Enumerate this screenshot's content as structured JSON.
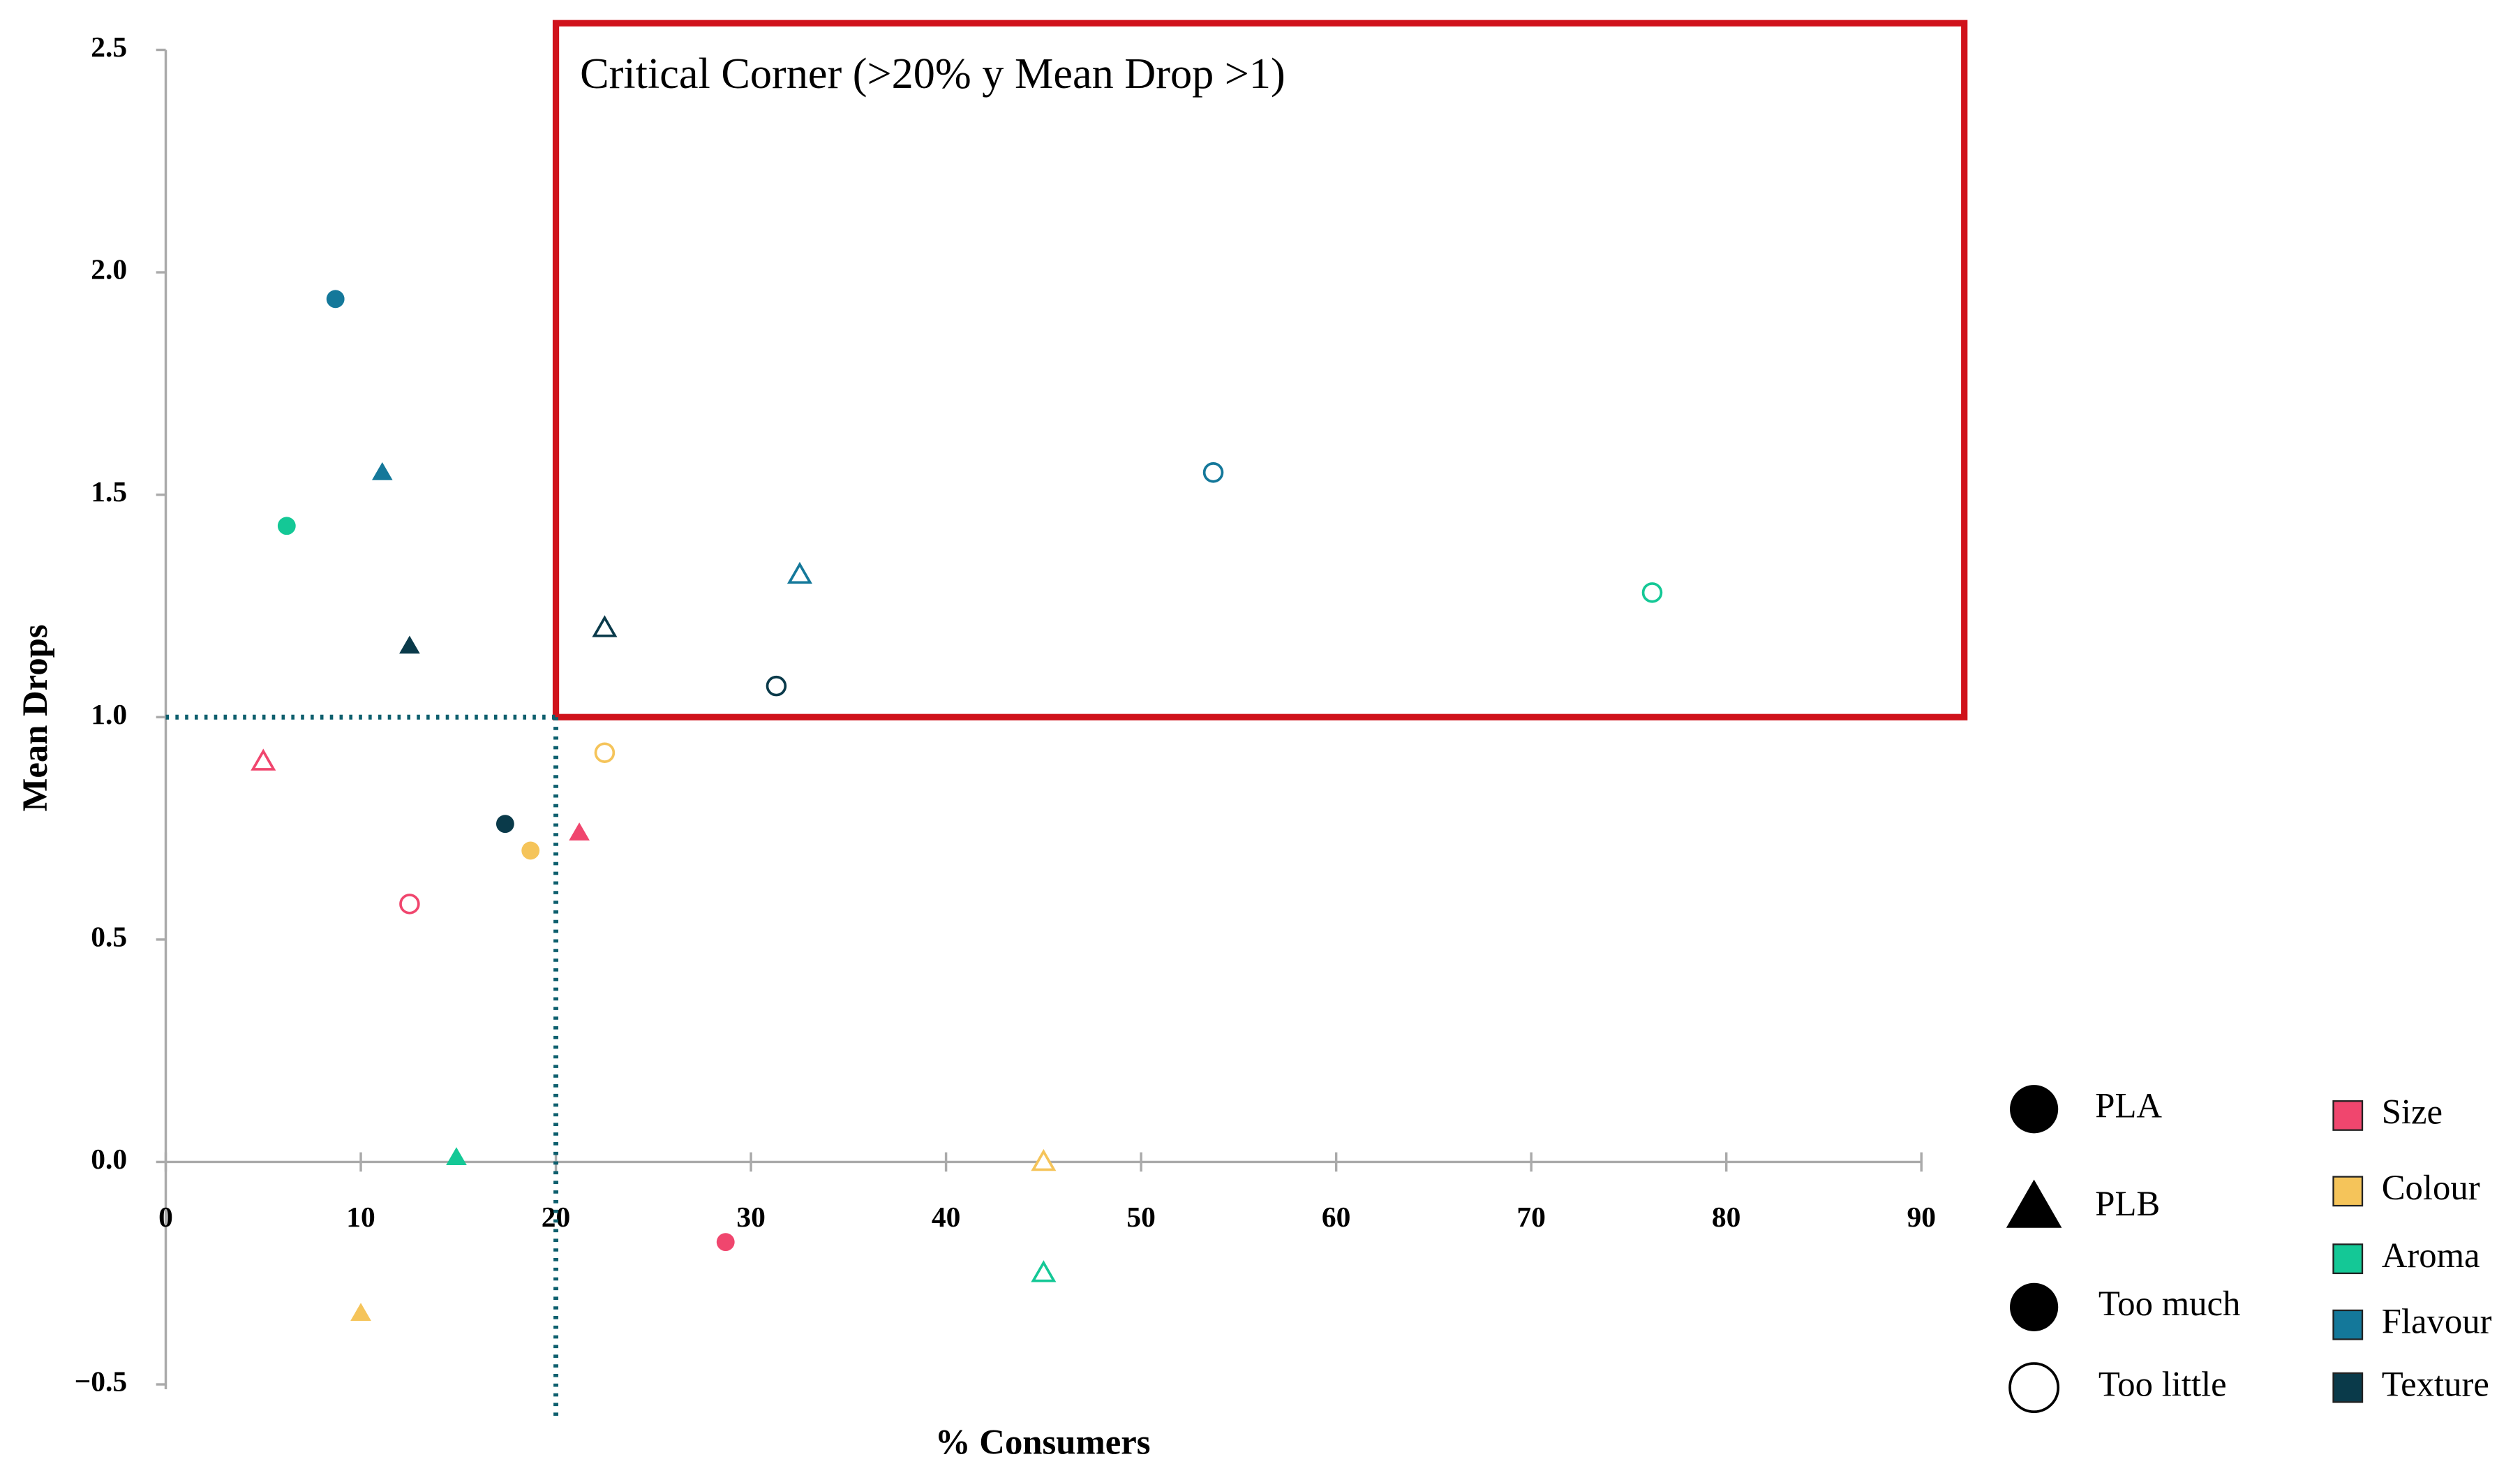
{
  "chart_data": {
    "type": "scatter",
    "x_label": "% Consumers",
    "y_label": "Mean Drops",
    "xlim": [
      0,
      90
    ],
    "ylim": [
      -0.5,
      2.5
    ],
    "xticks": [
      0,
      10,
      20,
      30,
      40,
      50,
      60,
      70,
      80,
      90
    ],
    "yticks": [
      {
        "value": -0.5,
        "label": "−0.5"
      },
      {
        "value": 0,
        "label": "0.0"
      },
      {
        "value": 0.5,
        "label": "0.5"
      },
      {
        "value": 1,
        "label": "1.0"
      },
      {
        "value": 1.5,
        "label": "1.5"
      },
      {
        "value": 2,
        "label": "2.0"
      },
      {
        "value": 2.5,
        "label": "2.5"
      }
    ],
    "reference_lines": {
      "x": 20,
      "y": 1,
      "color": "#0e5f6e"
    },
    "region": {
      "label": "Critical Corner (>20% y Mean Drop >1)",
      "color": "#d0121b",
      "xlim": [
        20,
        92.2
      ],
      "ylim": [
        1,
        2.56
      ]
    },
    "shape_legend": [
      {
        "label": "PLA",
        "shape": "circle",
        "filled": true
      },
      {
        "label": "PLB",
        "shape": "triangle",
        "filled": true
      },
      {
        "label": "Too much",
        "shape": "circle",
        "filled": true
      },
      {
        "label": "Too little",
        "shape": "circle",
        "filled": false
      }
    ],
    "series": [
      {
        "name": "Size",
        "color": "#f0466e",
        "points": [
          {
            "x": 5.0,
            "y": 0.9,
            "shape": "triangle",
            "filled": false
          },
          {
            "x": 21.2,
            "y": 0.74,
            "shape": "triangle",
            "filled": true
          },
          {
            "x": 12.5,
            "y": 0.58,
            "shape": "circle",
            "filled": false
          },
          {
            "x": 28.7,
            "y": -0.18,
            "shape": "circle",
            "filled": true
          }
        ]
      },
      {
        "name": "Colour",
        "color": "#f5c45a",
        "points": [
          {
            "x": 18.7,
            "y": 0.7,
            "shape": "circle",
            "filled": true
          },
          {
            "x": 45,
            "y": 0,
            "shape": "triangle",
            "filled": false
          },
          {
            "x": 10,
            "y": -0.34,
            "shape": "triangle",
            "filled": true
          },
          {
            "x": 22.5,
            "y": 0.92,
            "shape": "circle",
            "filled": false
          }
        ]
      },
      {
        "name": "Aroma",
        "color": "#14c896",
        "points": [
          {
            "x": 6.2,
            "y": 1.43,
            "shape": "circle",
            "filled": true
          },
          {
            "x": 14.9,
            "y": 0.01,
            "shape": "triangle",
            "filled": true
          },
          {
            "x": 45,
            "y": -0.25,
            "shape": "triangle",
            "filled": false
          },
          {
            "x": 76.2,
            "y": 1.28,
            "shape": "circle",
            "filled": false
          }
        ]
      },
      {
        "name": "Flavour",
        "color": "#14789a",
        "points": [
          {
            "x": 8.7,
            "y": 1.94,
            "shape": "circle",
            "filled": true
          },
          {
            "x": 11.1,
            "y": 1.55,
            "shape": "triangle",
            "filled": true
          },
          {
            "x": 32.5,
            "y": 1.32,
            "shape": "triangle",
            "filled": false
          },
          {
            "x": 53.7,
            "y": 1.55,
            "shape": "circle",
            "filled": false
          }
        ]
      },
      {
        "name": "Texture",
        "color": "#0a3a4a",
        "points": [
          {
            "x": 12.5,
            "y": 1.16,
            "shape": "triangle",
            "filled": true
          },
          {
            "x": 17.4,
            "y": 0.76,
            "shape": "circle",
            "filled": true
          },
          {
            "x": 31.3,
            "y": 1.07,
            "shape": "circle",
            "filled": false
          },
          {
            "x": 22.5,
            "y": 1.2,
            "shape": "triangle",
            "filled": false
          }
        ]
      }
    ]
  }
}
